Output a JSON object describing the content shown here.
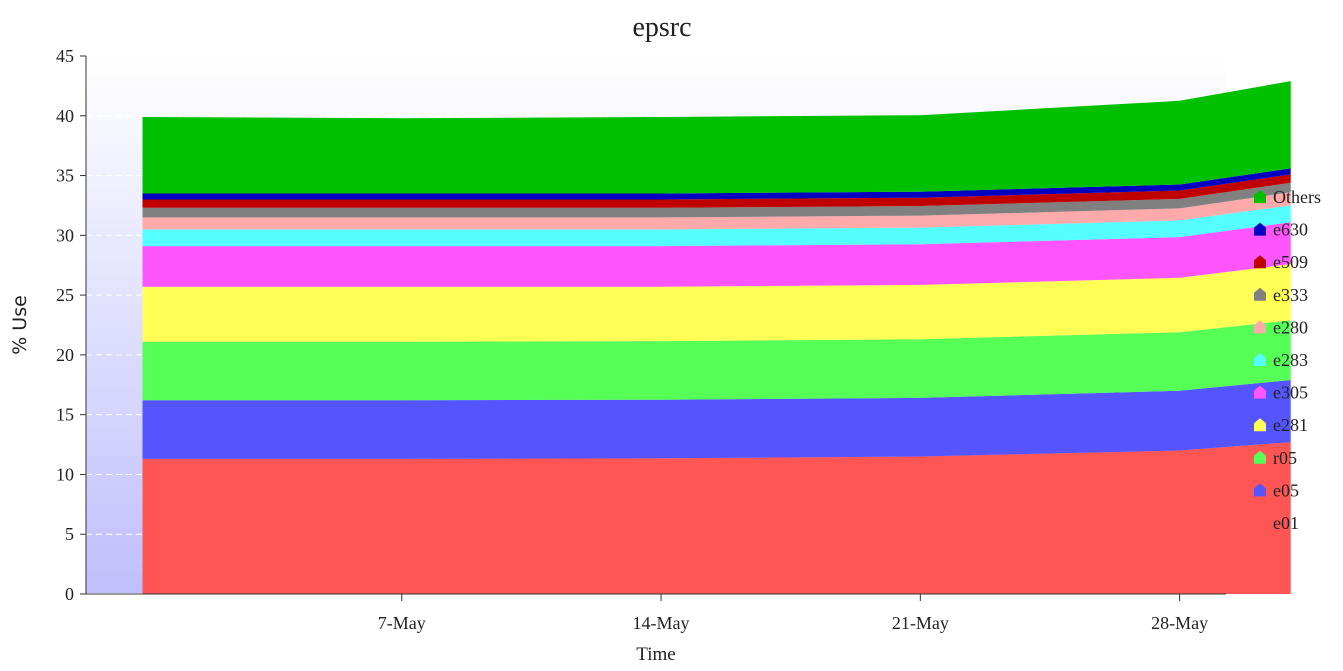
{
  "chart_data": {
    "type": "area",
    "stacked": true,
    "title": "epsrc",
    "xlabel": "Time",
    "ylabel": "% Use",
    "ylim": [
      0,
      45
    ],
    "yticks": [
      0,
      5,
      10,
      15,
      20,
      25,
      30,
      35,
      40,
      45
    ],
    "x_tick_labels": [
      "7-May",
      "14-May",
      "21-May",
      "28-May"
    ],
    "x_tick_positions": [
      "May 7",
      "May 14",
      "May 21",
      "May 28"
    ],
    "x": [
      "Apr 30",
      "May 7",
      "May 14",
      "May 21",
      "May 28",
      "May 31"
    ],
    "grid": true,
    "legend_position": "right",
    "series": [
      {
        "name": "e01",
        "color": "#ff5555",
        "values": [
          11.3,
          11.3,
          11.35,
          11.5,
          12.0,
          12.7
        ]
      },
      {
        "name": "e05",
        "color": "#5555ff",
        "values": [
          4.9,
          4.9,
          4.9,
          4.9,
          5.0,
          5.2
        ]
      },
      {
        "name": "r05",
        "color": "#55ff55",
        "values": [
          4.9,
          4.9,
          4.9,
          4.9,
          4.9,
          5.0
        ]
      },
      {
        "name": "e281",
        "color": "#ffff55",
        "values": [
          4.6,
          4.6,
          4.55,
          4.55,
          4.55,
          4.7
        ]
      },
      {
        "name": "e305",
        "color": "#ff55ff",
        "values": [
          3.4,
          3.4,
          3.4,
          3.4,
          3.4,
          3.5
        ]
      },
      {
        "name": "e283",
        "color": "#55ffff",
        "values": [
          1.4,
          1.4,
          1.4,
          1.4,
          1.4,
          1.4
        ]
      },
      {
        "name": "e280",
        "color": "#ffaaaa",
        "values": [
          1.0,
          1.0,
          1.0,
          1.0,
          1.0,
          1.1
        ]
      },
      {
        "name": "e333",
        "color": "#808080",
        "values": [
          0.8,
          0.8,
          0.8,
          0.8,
          0.8,
          0.8
        ]
      },
      {
        "name": "e509",
        "color": "#c00000",
        "values": [
          0.7,
          0.7,
          0.7,
          0.7,
          0.7,
          0.7
        ]
      },
      {
        "name": "e630",
        "color": "#0000c0",
        "values": [
          0.5,
          0.5,
          0.5,
          0.5,
          0.5,
          0.5
        ]
      },
      {
        "name": "Others",
        "color": "#00c000",
        "values": [
          6.4,
          6.3,
          6.4,
          6.4,
          7.0,
          7.3
        ]
      }
    ]
  }
}
